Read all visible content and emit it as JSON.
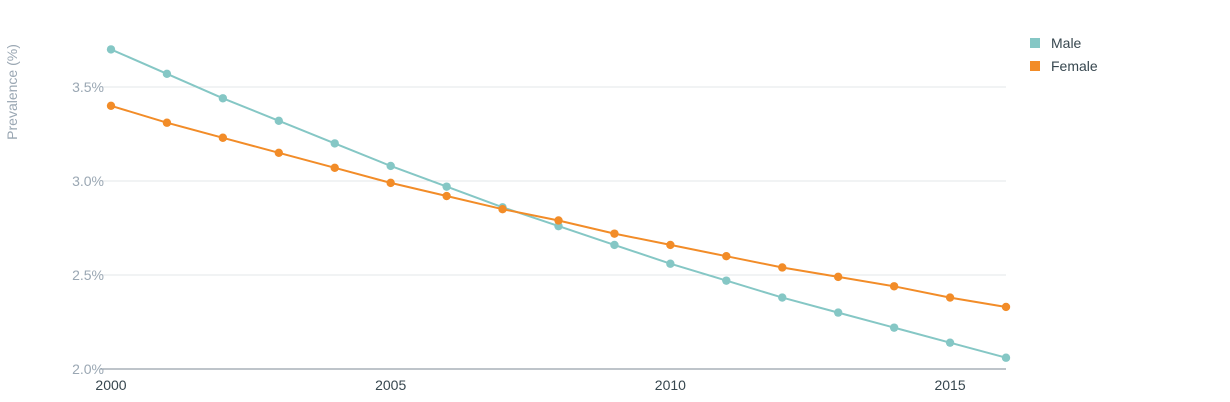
{
  "chart_data": {
    "type": "line",
    "ylabel": "Prevalence (%)",
    "xlabel": "",
    "x": [
      2000,
      2001,
      2002,
      2003,
      2004,
      2005,
      2006,
      2007,
      2008,
      2009,
      2010,
      2011,
      2012,
      2013,
      2014,
      2015,
      2016
    ],
    "series": [
      {
        "name": "Male",
        "color": "#85c7c5",
        "values": [
          3.7,
          3.57,
          3.44,
          3.32,
          3.2,
          3.08,
          2.97,
          2.86,
          2.76,
          2.66,
          2.56,
          2.47,
          2.38,
          2.3,
          2.22,
          2.14,
          2.06
        ]
      },
      {
        "name": "Female",
        "color": "#f28c28",
        "values": [
          3.4,
          3.31,
          3.23,
          3.15,
          3.07,
          2.99,
          2.92,
          2.85,
          2.79,
          2.72,
          2.66,
          2.6,
          2.54,
          2.49,
          2.44,
          2.38,
          2.33
        ]
      }
    ],
    "xticks": [
      2000,
      2005,
      2010,
      2015
    ],
    "yticks": [
      2.0,
      2.5,
      3.0,
      3.5
    ],
    "ytick_labels": [
      "2.0%",
      "2.5%",
      "3.0%",
      "3.5%"
    ],
    "ylim": [
      2.0,
      3.75
    ],
    "xlim": [
      2000,
      2016
    ],
    "grid": true,
    "legend_position": "top-right"
  }
}
